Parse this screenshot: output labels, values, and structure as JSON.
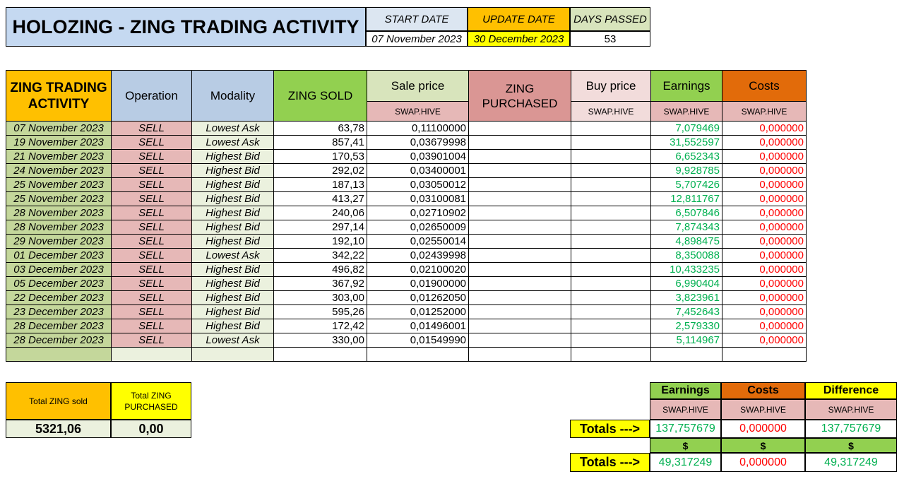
{
  "header": {
    "title": "HOLOZING - ZING TRADING ACTIVITY",
    "start_date_label": "START DATE",
    "start_date_value": "07 November 2023",
    "update_date_label": "UPDATE DATE",
    "update_date_value": "30 December 2023",
    "days_passed_label": "DAYS PASSED",
    "days_passed_value": "53"
  },
  "colors": {
    "title_bg": "#c5d9f1",
    "orange": "#ffc000",
    "yellow": "#ffff00",
    "green": "#92d050",
    "dark_orange": "#e26b0a",
    "pink": "#e6b8b7",
    "earn_text": "#00b050",
    "cost_text": "#ff0000"
  },
  "table": {
    "headers": {
      "activity": "ZING TRADING ACTIVITY",
      "operation": "Operation",
      "modality": "Modality",
      "zing_sold": "ZING SOLD",
      "sale_price": "Sale price",
      "sale_price_unit": "SWAP.HIVE",
      "zing_purchased": "ZING PURCHASED",
      "buy_price": "Buy price",
      "buy_price_unit": "SWAP.HIVE",
      "earnings": "Earnings",
      "earnings_unit": "SWAP.HIVE",
      "costs": "Costs",
      "costs_unit": "SWAP.HIVE"
    },
    "rows": [
      {
        "date": "07 November 2023",
        "op": "SELL",
        "mod": "Lowest Ask",
        "sold": "63,78",
        "price": "0,11100000",
        "purchased": "",
        "buy": "",
        "earn": "7,079469",
        "cost": "0,000000"
      },
      {
        "date": "19 November 2023",
        "op": "SELL",
        "mod": "Lowest Ask",
        "sold": "857,41",
        "price": "0,03679998",
        "purchased": "",
        "buy": "",
        "earn": "31,552597",
        "cost": "0,000000"
      },
      {
        "date": "21 November 2023",
        "op": "SELL",
        "mod": "Highest Bid",
        "sold": "170,53",
        "price": "0,03901004",
        "purchased": "",
        "buy": "",
        "earn": "6,652343",
        "cost": "0,000000"
      },
      {
        "date": "24 November 2023",
        "op": "SELL",
        "mod": "Highest Bid",
        "sold": "292,02",
        "price": "0,03400001",
        "purchased": "",
        "buy": "",
        "earn": "9,928785",
        "cost": "0,000000"
      },
      {
        "date": "25 November 2023",
        "op": "SELL",
        "mod": "Highest Bid",
        "sold": "187,13",
        "price": "0,03050012",
        "purchased": "",
        "buy": "",
        "earn": "5,707426",
        "cost": "0,000000"
      },
      {
        "date": "25 November 2023",
        "op": "SELL",
        "mod": "Highest Bid",
        "sold": "413,27",
        "price": "0,03100081",
        "purchased": "",
        "buy": "",
        "earn": "12,811767",
        "cost": "0,000000"
      },
      {
        "date": "28 November 2023",
        "op": "SELL",
        "mod": "Highest Bid",
        "sold": "240,06",
        "price": "0,02710902",
        "purchased": "",
        "buy": "",
        "earn": "6,507846",
        "cost": "0,000000"
      },
      {
        "date": "28 November 2023",
        "op": "SELL",
        "mod": "Highest Bid",
        "sold": "297,14",
        "price": "0,02650009",
        "purchased": "",
        "buy": "",
        "earn": "7,874343",
        "cost": "0,000000"
      },
      {
        "date": "29 November 2023",
        "op": "SELL",
        "mod": "Highest Bid",
        "sold": "192,10",
        "price": "0,02550014",
        "purchased": "",
        "buy": "",
        "earn": "4,898475",
        "cost": "0,000000"
      },
      {
        "date": "01 December 2023",
        "op": "SELL",
        "mod": "Lowest Ask",
        "sold": "342,22",
        "price": "0,02439998",
        "purchased": "",
        "buy": "",
        "earn": "8,350088",
        "cost": "0,000000"
      },
      {
        "date": "03 December 2023",
        "op": "SELL",
        "mod": "Highest Bid",
        "sold": "496,82",
        "price": "0,02100020",
        "purchased": "",
        "buy": "",
        "earn": "10,433235",
        "cost": "0,000000"
      },
      {
        "date": "05 December 2023",
        "op": "SELL",
        "mod": "Highest Bid",
        "sold": "367,92",
        "price": "0,01900000",
        "purchased": "",
        "buy": "",
        "earn": "6,990404",
        "cost": "0,000000"
      },
      {
        "date": "22 December 2023",
        "op": "SELL",
        "mod": "Highest Bid",
        "sold": "303,00",
        "price": "0,01262050",
        "purchased": "",
        "buy": "",
        "earn": "3,823961",
        "cost": "0,000000"
      },
      {
        "date": "23 December 2023",
        "op": "SELL",
        "mod": "Highest Bid",
        "sold": "595,26",
        "price": "0,01252000",
        "purchased": "",
        "buy": "",
        "earn": "7,452643",
        "cost": "0,000000"
      },
      {
        "date": "28 December 2023",
        "op": "SELL",
        "mod": "Highest Bid",
        "sold": "172,42",
        "price": "0,01496001",
        "purchased": "",
        "buy": "",
        "earn": "2,579330",
        "cost": "0,000000"
      },
      {
        "date": "28 December 2023",
        "op": "SELL",
        "mod": "Lowest Ask",
        "sold": "330,00",
        "price": "0,01549990",
        "purchased": "",
        "buy": "",
        "earn": "5,114967",
        "cost": "0,000000"
      }
    ]
  },
  "totals_left": {
    "sold_label": "Total ZING sold",
    "sold_value": "5321,06",
    "purchased_label": "Total ZING PURCHASED",
    "purchased_value": "0,00"
  },
  "totals_right": {
    "earnings_label": "Earnings",
    "costs_label": "Costs",
    "difference_label": "Difference",
    "unit": "SWAP.HIVE",
    "totals_label": "Totals --->",
    "earn_hive": "137,757679",
    "cost_hive": "0,000000",
    "diff_hive": "137,757679",
    "dollar": "$",
    "earn_usd": "49,317249",
    "cost_usd": "0,000000",
    "diff_usd": "49,317249"
  }
}
